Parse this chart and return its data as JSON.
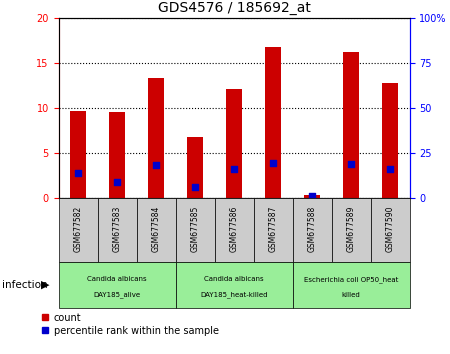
{
  "title": "GDS4576 / 185692_at",
  "samples": [
    "GSM677582",
    "GSM677583",
    "GSM677584",
    "GSM677585",
    "GSM677586",
    "GSM677587",
    "GSM677588",
    "GSM677589",
    "GSM677590"
  ],
  "counts": [
    9.7,
    9.6,
    13.3,
    6.8,
    12.1,
    16.8,
    0.4,
    16.2,
    12.8
  ],
  "percentile_ranks": [
    2.8,
    1.8,
    3.7,
    1.3,
    3.2,
    3.9,
    0.3,
    3.8,
    3.2
  ],
  "ylim_left": [
    0,
    20
  ],
  "ylim_right": [
    0,
    100
  ],
  "yticks_left": [
    0,
    5,
    10,
    15,
    20
  ],
  "yticks_right": [
    0,
    25,
    50,
    75,
    100
  ],
  "ytick_labels_right": [
    "0",
    "25",
    "50",
    "75",
    "100%"
  ],
  "bar_color": "#cc0000",
  "dot_color": "#0000cc",
  "groups": [
    {
      "label": "Candida albicans\nDAY185_alive",
      "start": 0,
      "end": 3,
      "color": "#99ee99"
    },
    {
      "label": "Candida albicans\nDAY185_heat-killed",
      "start": 3,
      "end": 6,
      "color": "#99ee99"
    },
    {
      "label": "Escherichia coli OP50_heat\nkilled",
      "start": 6,
      "end": 9,
      "color": "#99ee99"
    }
  ],
  "group_attribute": "infection",
  "background_color": "#ffffff",
  "tick_bg_color": "#cccccc",
  "bar_width": 0.4,
  "dot_size": 18,
  "legend_labels": [
    "count",
    "percentile rank within the sample"
  ],
  "legend_colors": [
    "#cc0000",
    "#0000cc"
  ]
}
